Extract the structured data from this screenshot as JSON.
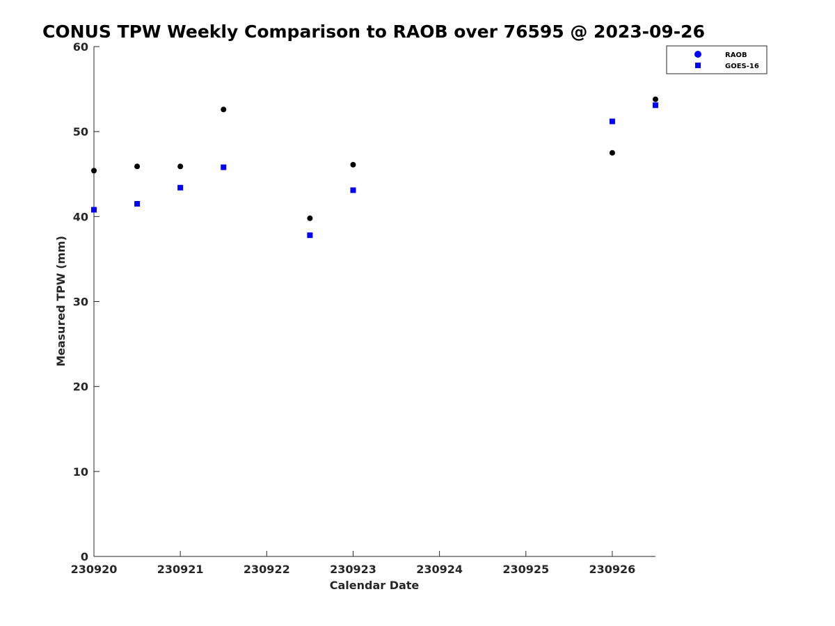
{
  "chart_data": {
    "type": "scatter",
    "title": "CONUS TPW Weekly Comparison to RAOB over 76595 @ 2023-09-26",
    "xlabel": "Calendar Date",
    "ylabel": "Measured TPW (mm)",
    "xlim": [
      0,
      6.5
    ],
    "ylim": [
      0,
      60
    ],
    "x_ticks": [
      {
        "value": 0,
        "label": "230920"
      },
      {
        "value": 1,
        "label": "230921"
      },
      {
        "value": 2,
        "label": "230922"
      },
      {
        "value": 3,
        "label": "230923"
      },
      {
        "value": 4,
        "label": "230924"
      },
      {
        "value": 5,
        "label": "230925"
      },
      {
        "value": 6,
        "label": "230926"
      }
    ],
    "y_ticks": [
      0,
      10,
      20,
      30,
      40,
      50,
      60
    ],
    "grid": false,
    "legend_position": "top-right",
    "series": [
      {
        "name": "RAOB",
        "marker": "circle",
        "color": "#000000",
        "legend_color": "#0000ff",
        "x": [
          0,
          0.5,
          1,
          1.5,
          2.5,
          3,
          6,
          6.5
        ],
        "y": [
          45.4,
          45.9,
          45.9,
          52.6,
          39.8,
          46.1,
          47.5,
          53.8
        ]
      },
      {
        "name": "GOES-16",
        "marker": "square",
        "color": "#0000ff",
        "legend_color": "#0000ff",
        "x": [
          0,
          0.5,
          1,
          1.5,
          2.5,
          3,
          6,
          6.5
        ],
        "y": [
          40.8,
          41.5,
          43.4,
          45.8,
          37.8,
          43.1,
          51.2,
          53.1
        ]
      }
    ]
  }
}
